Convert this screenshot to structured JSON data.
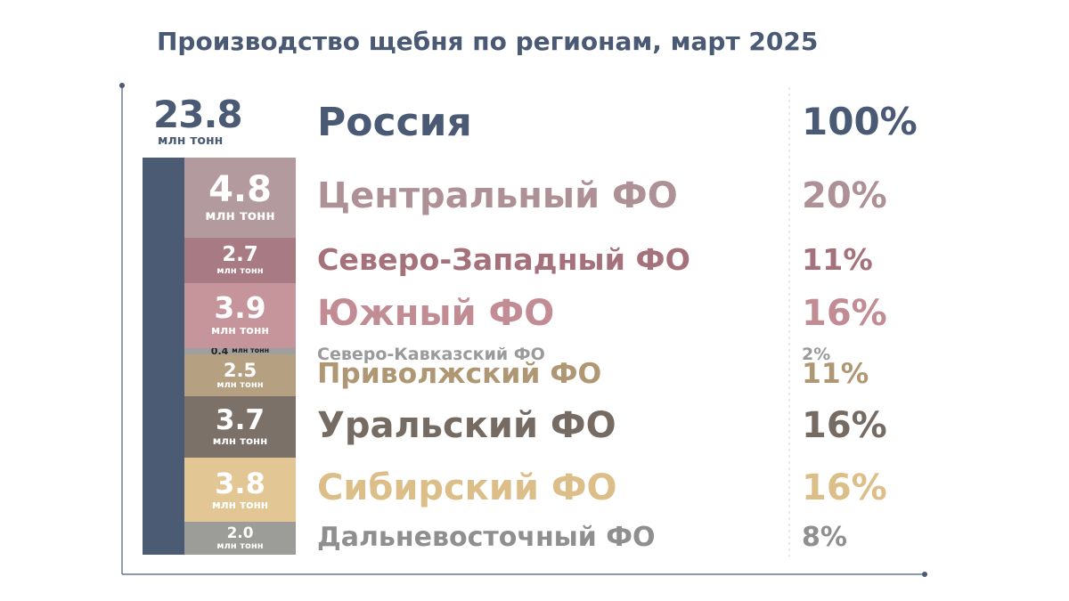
{
  "chart_data": {
    "type": "bar",
    "title": "Производство щебня по регионам, март 2025",
    "total": {
      "name": "Россия",
      "value": 23.8,
      "value_label": "23.8",
      "unit": "млн тонн",
      "share_label": "100%"
    },
    "categories": [
      "Центральный ФО",
      "Северо-Западный ФО",
      "Южный ФО",
      "Северо-Кавказский ФО",
      "Приволжский ФО",
      "Уральский ФО",
      "Сибирский ФО",
      "Дальневосточный ФО"
    ],
    "values": [
      4.8,
      2.7,
      3.9,
      0.4,
      2.5,
      3.7,
      3.8,
      2.0
    ],
    "value_labels": [
      "4.8",
      "2.7",
      "3.9",
      "0.4",
      "2.5",
      "3.7",
      "3.8",
      "2.0"
    ],
    "unit_label": "млн тонн",
    "shares": [
      "20%",
      "11%",
      "16%",
      "2%",
      "11%",
      "16%",
      "16%",
      "8%"
    ],
    "colors": [
      "#b39a9e",
      "#a87a83",
      "#c6949b",
      "#9f9f9f",
      "#b5a082",
      "#7b7169",
      "#e2c795",
      "#9c9c98"
    ],
    "total_color": "#4b5b73",
    "text_colors": [
      "#ae9196",
      "#a5727c",
      "#c28c95",
      "#9a9a9a",
      "#b09774",
      "#766b63",
      "#dcbf88",
      "#8f8f8f"
    ],
    "total_text_color": "#4a5a74"
  }
}
